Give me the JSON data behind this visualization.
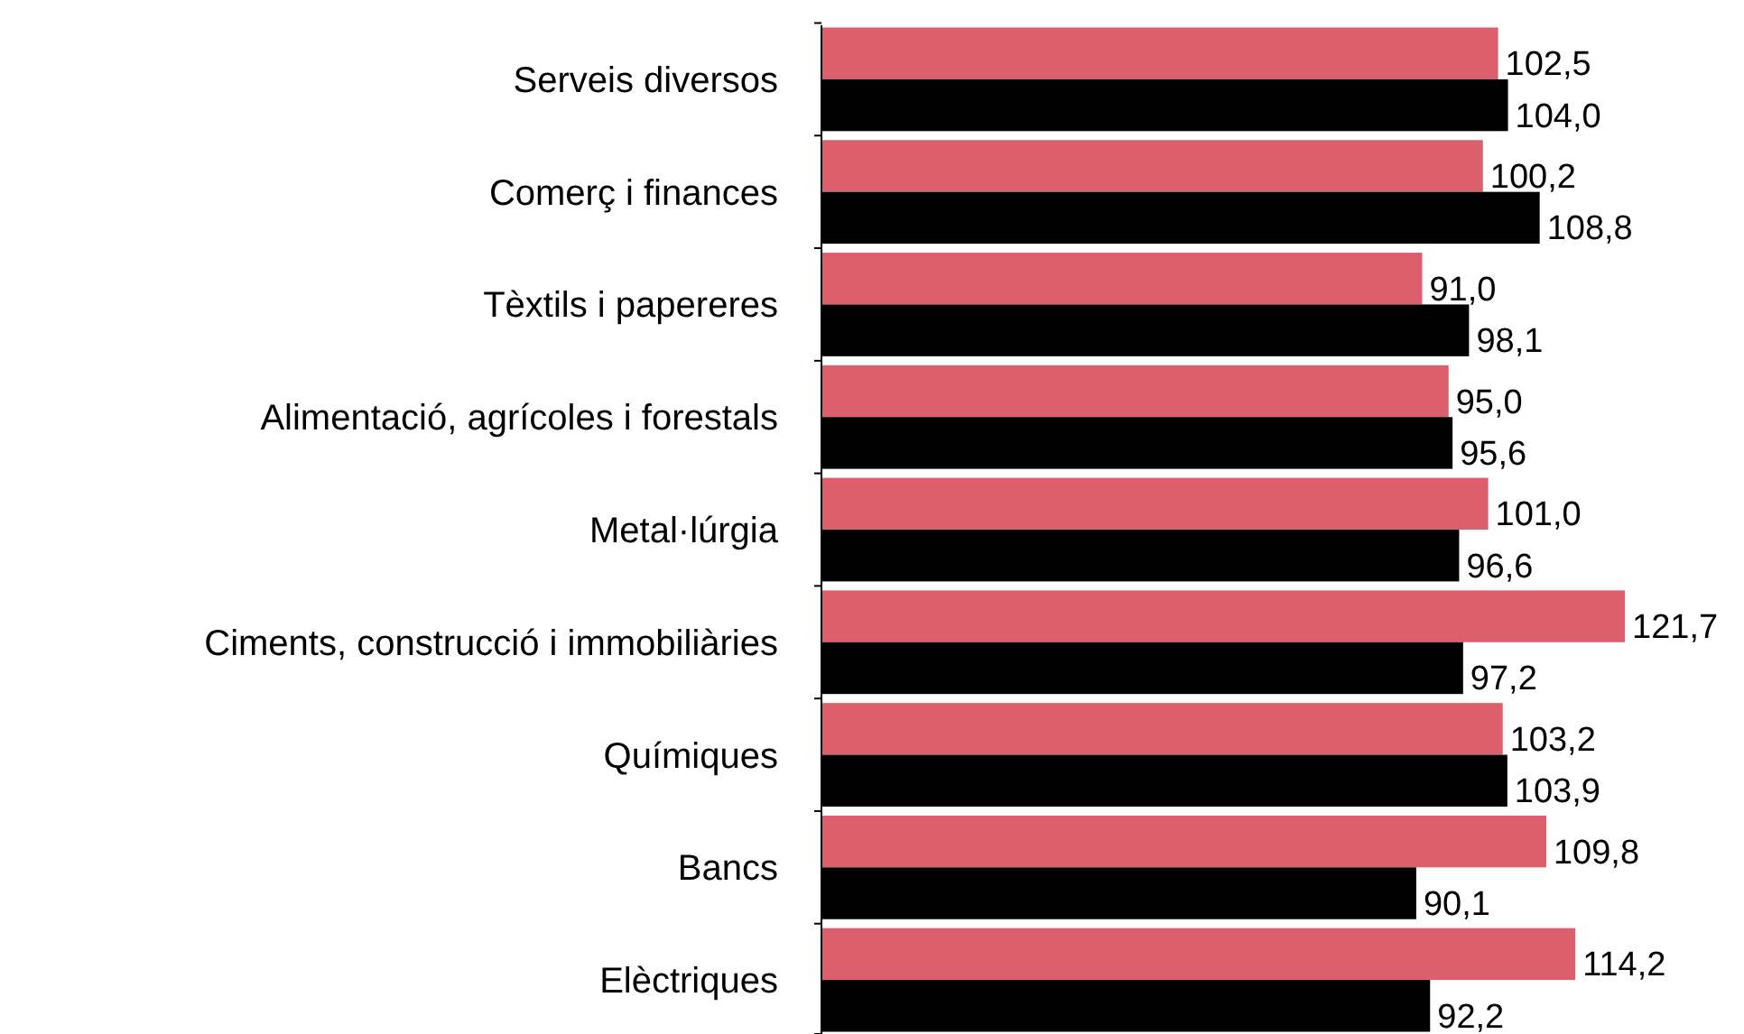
{
  "chart_data": {
    "type": "bar",
    "orientation": "horizontal",
    "categories": [
      "Serveis diversos",
      "Comerç i finances",
      "Tèxtils i papereres",
      "Alimentació, agrícoles i forestals",
      "Metal·lúrgia",
      "Ciments, construcció i immobiliàries",
      "Químiques",
      "Bancs",
      "Elèctriques"
    ],
    "series": [
      {
        "color": "#dc5f6e",
        "values": [
          102.5,
          100.2,
          91.0,
          95.0,
          101.0,
          121.7,
          103.2,
          109.8,
          114.2
        ],
        "value_labels": [
          "102,5",
          "100,2",
          "91,0",
          "95,0",
          "101,0",
          "121,7",
          "103,2",
          "109,8",
          "114,2"
        ]
      },
      {
        "color": "#000000",
        "values": [
          104.0,
          108.8,
          98.1,
          95.6,
          96.6,
          97.2,
          103.9,
          90.1,
          92.2
        ],
        "value_labels": [
          "104,0",
          "108,8",
          "98,1",
          "95,6",
          "96,6",
          "97,2",
          "103,9",
          "90,1",
          "92,2"
        ]
      }
    ]
  }
}
